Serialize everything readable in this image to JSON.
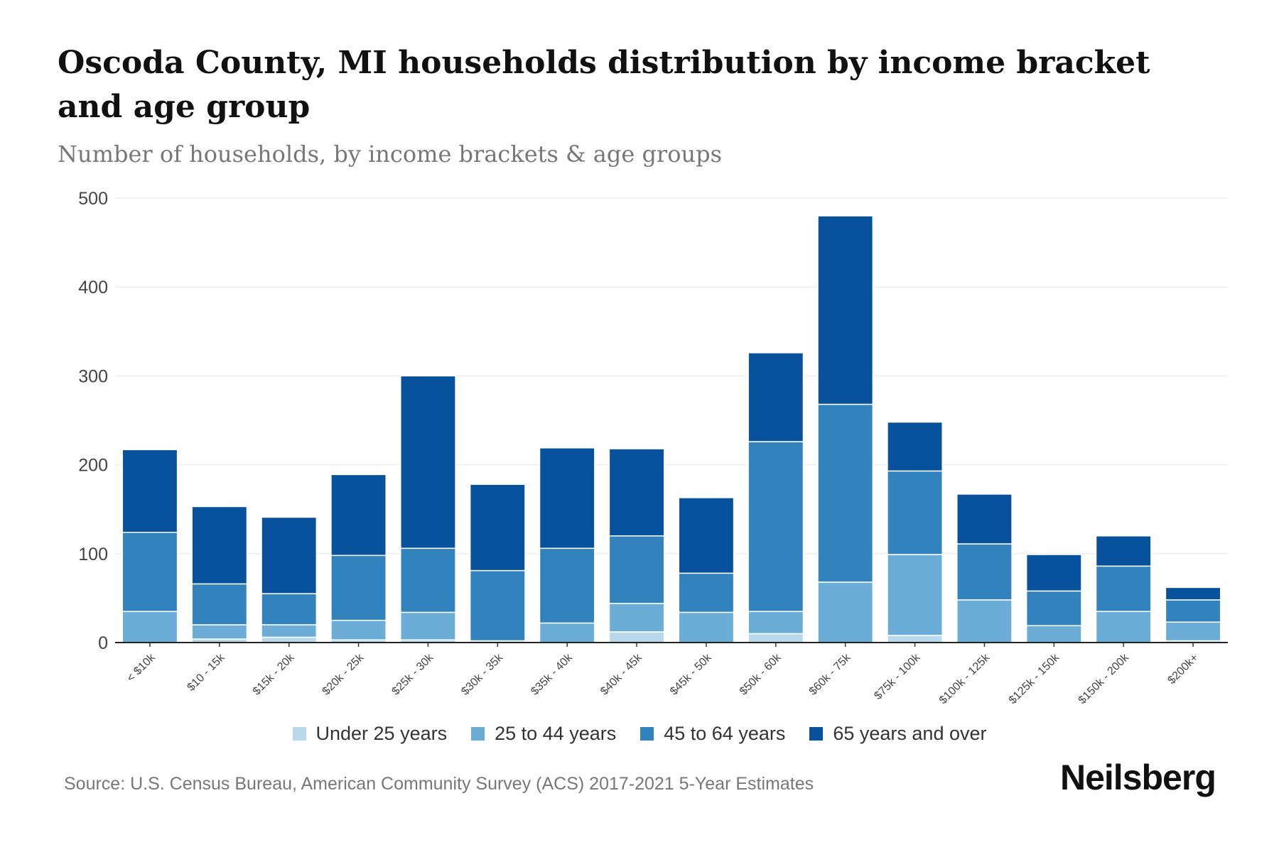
{
  "title": "Oscoda County, MI households distribution by income bracket and age group",
  "subtitle": "Number of households, by income brackets & age groups",
  "source": "Source: U.S. Census Bureau, American Community Survey (ACS) 2017-2021 5-Year Estimates",
  "logo": "Neilsberg",
  "chart_data": {
    "type": "bar",
    "stacked": true,
    "title": "Oscoda County, MI households distribution by income bracket and age group",
    "xlabel": "",
    "ylabel": "Number of households",
    "ylim": [
      0,
      500
    ],
    "yticks": [
      0,
      100,
      200,
      300,
      400,
      500
    ],
    "grid": true,
    "legend_position": "bottom",
    "categories": [
      "< $10k",
      "$10 - 15k",
      "$15k - 20k",
      "$20k - 25k",
      "$25k - 30k",
      "$30k - 35k",
      "$35k - 40k",
      "$40k - 45k",
      "$45k - 50k",
      "$50k - 60k",
      "$60k - 75k",
      "$75k - 100k",
      "$100k - 125k",
      "$125k - 150k",
      "$150k - 200k",
      "$200k+"
    ],
    "series": [
      {
        "name": "Under 25 years",
        "color": "#b9d8ea",
        "values": [
          0,
          4,
          6,
          3,
          3,
          2,
          0,
          12,
          0,
          10,
          0,
          8,
          0,
          0,
          0,
          2
        ]
      },
      {
        "name": "25 to 44 years",
        "color": "#6badd6",
        "values": [
          35,
          16,
          14,
          22,
          31,
          0,
          22,
          32,
          34,
          25,
          68,
          91,
          48,
          19,
          35,
          21
        ]
      },
      {
        "name": "45 to 64 years",
        "color": "#3182bd",
        "values": [
          89,
          46,
          35,
          73,
          72,
          79,
          84,
          76,
          44,
          191,
          200,
          94,
          63,
          39,
          51,
          25
        ]
      },
      {
        "name": "65 years and over",
        "color": "#08519c",
        "values": [
          93,
          87,
          86,
          91,
          194,
          97,
          113,
          98,
          85,
          100,
          212,
          55,
          56,
          41,
          34,
          14
        ]
      }
    ]
  }
}
